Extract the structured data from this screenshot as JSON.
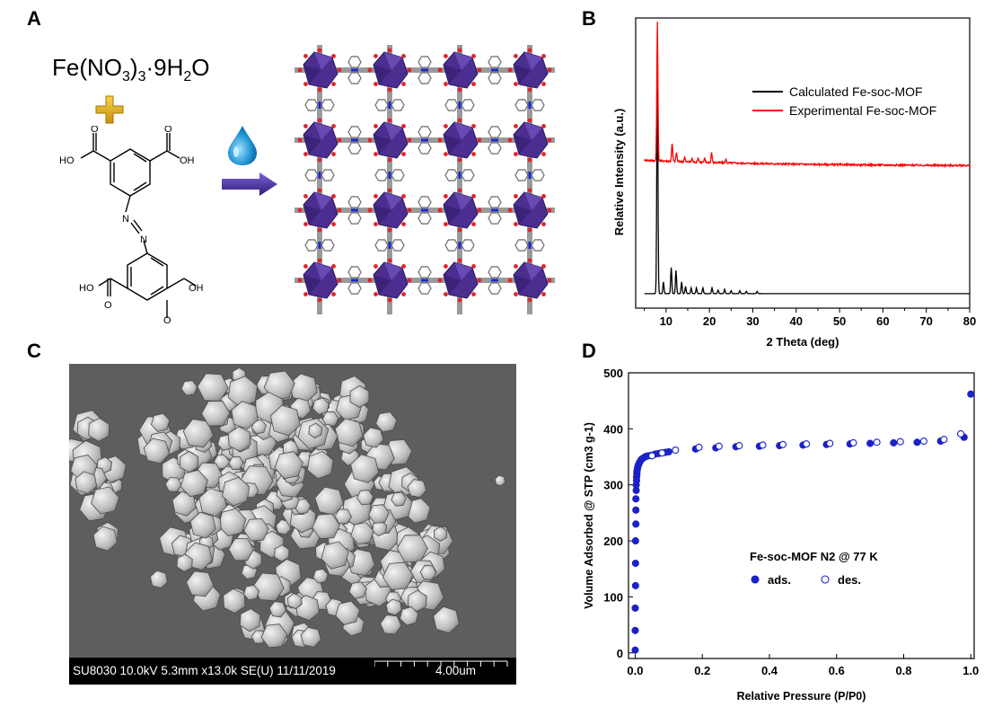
{
  "panels": {
    "a": "A",
    "b": "B",
    "c": "C",
    "d": "D"
  },
  "panel_a": {
    "metal_salt": {
      "base": "Fe(NO",
      "sub1": "3",
      "mid": ")",
      "sub2": "3",
      "dot": "·9H",
      "sub3": "2",
      "end": "O"
    },
    "ligand_labels": {
      "top_left": "HO",
      "top_right": "OH",
      "bottom_left": "HO",
      "bottom_right": "OH",
      "oxygen": "O",
      "nitrogen": "N"
    },
    "colors": {
      "plus": "#e3b21a",
      "arrow": "#4a2f9a",
      "drop": "#1b8fd0",
      "polyhedra": "#4b2e90"
    }
  },
  "panel_c": {
    "sem_info": "SU8030 10.0kV 5.3mm x13.0k SE(U) 11/11/2019",
    "scale_label": "4.00um"
  },
  "chart_data": [
    {
      "type": "line",
      "panel": "B",
      "xlabel": "2 Theta (deg)",
      "ylabel": "Relative Intensity (a.u.)",
      "xlim": [
        3,
        80
      ],
      "xticks": [
        10,
        20,
        30,
        40,
        50,
        60,
        70,
        80
      ],
      "y_axis_ticks": false,
      "legend_position": "top-right",
      "series": [
        {
          "name": "Calculated Fe-soc-MOF",
          "color": "#000000",
          "baseline": 0.05,
          "peaks": [
            [
              8.0,
              0.85
            ],
            [
              9.4,
              0.04
            ],
            [
              11.2,
              0.09
            ],
            [
              12.3,
              0.08
            ],
            [
              13.6,
              0.04
            ],
            [
              14.5,
              0.025
            ],
            [
              15.8,
              0.02
            ],
            [
              17.0,
              0.02
            ],
            [
              18.5,
              0.02
            ],
            [
              20.6,
              0.02
            ],
            [
              22.0,
              0.012
            ],
            [
              23.5,
              0.015
            ],
            [
              25.0,
              0.01
            ],
            [
              27.0,
              0.01
            ],
            [
              28.5,
              0.008
            ],
            [
              31.0,
              0.008
            ]
          ]
        },
        {
          "name": "Experimental Fe-soc-MOF",
          "color": "#ff0000",
          "baseline": 0.49,
          "peaks": [
            [
              8.0,
              0.48
            ],
            [
              11.4,
              0.06
            ],
            [
              12.4,
              0.03
            ],
            [
              14.3,
              0.015
            ],
            [
              16.0,
              0.012
            ],
            [
              17.4,
              0.015
            ],
            [
              18.9,
              0.012
            ],
            [
              20.5,
              0.035
            ],
            [
              23.8,
              0.012
            ]
          ]
        }
      ]
    },
    {
      "type": "scatter",
      "panel": "D",
      "xlabel": "Relative Pressure (P/P0)",
      "ylabel": "Volume Adsorbed @ STP (cm3 g-1)",
      "xlim": [
        -0.02,
        1.01
      ],
      "ylim": [
        -10,
        500
      ],
      "xticks": [
        0.0,
        0.2,
        0.4,
        0.6,
        0.8,
        1.0
      ],
      "yticks": [
        0,
        100,
        200,
        300,
        400,
        500
      ],
      "annotation": "Fe-soc-MOF N2 @ 77 K",
      "legend_position": "center-right",
      "series": [
        {
          "name": "ads.",
          "marker": "filled-circle",
          "color": "#1a22c8",
          "x": [
            0.0,
            0.0,
            0.0,
            0.001,
            0.001,
            0.001,
            0.002,
            0.002,
            0.002,
            0.003,
            0.003,
            0.004,
            0.004,
            0.005,
            0.005,
            0.006,
            0.007,
            0.008,
            0.01,
            0.012,
            0.015,
            0.018,
            0.022,
            0.027,
            0.033,
            0.04,
            0.05,
            0.06,
            0.07,
            0.08,
            0.09,
            0.1,
            0.18,
            0.24,
            0.3,
            0.37,
            0.43,
            0.5,
            0.57,
            0.64,
            0.7,
            0.77,
            0.84,
            0.91,
            0.98,
            1.0
          ],
          "y": [
            5,
            40,
            80,
            120,
            160,
            200,
            230,
            255,
            275,
            290,
            300,
            308,
            314,
            319,
            323,
            327,
            330,
            333,
            336,
            339,
            342,
            345,
            347,
            349,
            351,
            352,
            353,
            355,
            356,
            357,
            358,
            359,
            364,
            366,
            368,
            369,
            370,
            371,
            372,
            373,
            374,
            375,
            376,
            378,
            385,
            462
          ]
        },
        {
          "name": "des.",
          "marker": "open-circle",
          "color": "#1a22c8",
          "x": [
            0.97,
            0.92,
            0.86,
            0.79,
            0.72,
            0.65,
            0.58,
            0.51,
            0.44,
            0.38,
            0.31,
            0.25,
            0.19,
            0.12,
            0.08,
            0.05
          ],
          "y": [
            391,
            381,
            378,
            377,
            376,
            375,
            374,
            373,
            372,
            371,
            370,
            369,
            367,
            362,
            357,
            352
          ]
        }
      ]
    }
  ]
}
